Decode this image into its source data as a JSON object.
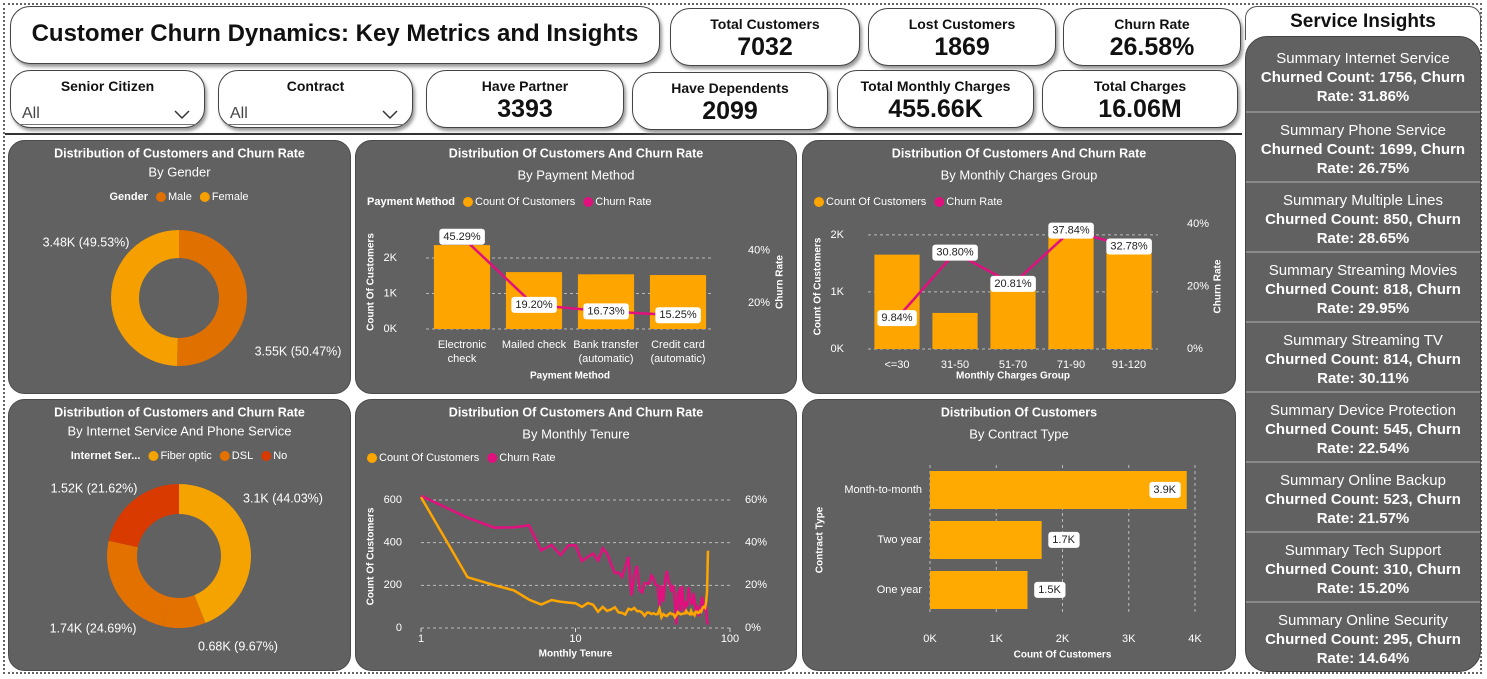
{
  "header": {
    "title": "Customer Churn Dynamics: Key Metrics and Insights"
  },
  "kpis": [
    {
      "label": "Total Customers",
      "value": "7032"
    },
    {
      "label": "Lost Customers",
      "value": "1869"
    },
    {
      "label": "Churn Rate",
      "value": "26.58%"
    },
    {
      "label": "Have Partner",
      "value": "3393"
    },
    {
      "label": "Have Dependents",
      "value": "2099"
    },
    {
      "label": "Total Monthly Charges",
      "value": "455.66K"
    },
    {
      "label": "Total Charges",
      "value": "16.06M"
    }
  ],
  "slicers": [
    {
      "label": "Senior Citizen",
      "value": "All"
    },
    {
      "label": "Contract",
      "value": "All"
    }
  ],
  "insights": {
    "title": "Service Insights",
    "items": [
      {
        "title": "Summary Internet Service",
        "text": "Churned Count: 1756, Churn Rate: 31.86%"
      },
      {
        "title": "Summary Phone Service",
        "text": "Churned Count: 1699, Churn Rate: 26.75%"
      },
      {
        "title": "Summary Multiple Lines",
        "text": "Churned Count: 850, Churn Rate: 28.65%"
      },
      {
        "title": "Summary Streaming Movies",
        "text": "Churned Count: 818, Churn Rate: 29.95%"
      },
      {
        "title": "Summary Streaming TV",
        "text": "Churned Count: 814, Churn Rate: 30.11%"
      },
      {
        "title": "Summary Device Protection",
        "text": "Churned Count: 545, Churn Rate: 22.54%"
      },
      {
        "title": "Summary Online Backup",
        "text": "Churned Count: 523, Churn Rate: 21.57%"
      },
      {
        "title": "Summary Tech Support",
        "text": "Churned Count: 310, Churn Rate: 15.20%"
      },
      {
        "title": "Summary Online Security",
        "text": "Churned Count: 295, Churn Rate: 14.64%"
      }
    ]
  },
  "chart_data": [
    {
      "type": "donut",
      "title": "Distribution of Customers and Churn Rate",
      "subtitle": "By Gender",
      "legend_title": "Gender",
      "categories": [
        "Male",
        "Female"
      ],
      "values": [
        3549,
        3483
      ],
      "value_labels": [
        "3.55K (50.47%)",
        "3.48K (49.53%)"
      ],
      "colors": [
        "#E07000",
        "#F5A000"
      ]
    },
    {
      "type": "combo",
      "title": "Distribution Of Customers And Churn Rate",
      "subtitle": "By Payment Method",
      "legend_title": "Payment Method",
      "categories": [
        "Electronic check",
        "Mailed check",
        "Bank transfer (automatic)",
        "Credit card (automatic)"
      ],
      "series": [
        {
          "name": "Count Of Customers",
          "type": "bar",
          "color": "#FFA500",
          "values": [
            2365,
            1604,
            1542,
            1521
          ]
        },
        {
          "name": "Churn Rate",
          "type": "line",
          "axis": "y2",
          "color": "#E0117F",
          "values": [
            45.29,
            19.2,
            16.73,
            15.25
          ],
          "value_labels": [
            "45.29%",
            "19.20%",
            "16.73%",
            "15.25%"
          ]
        }
      ],
      "xlabel": "Payment Method",
      "ylabel": "Count Of Customers",
      "y2label": "Churn Rate",
      "ylim": [
        0,
        2650
      ],
      "yticks": [
        {
          "value": 0,
          "label": "0K"
        },
        {
          "value": 1000,
          "label": "1K"
        },
        {
          "value": 2000,
          "label": "2K"
        }
      ],
      "y2lim": [
        10,
        46
      ],
      "y2ticks": [
        {
          "value": 20,
          "label": "20%"
        },
        {
          "value": 40,
          "label": "40%"
        }
      ],
      "grid": true
    },
    {
      "type": "combo",
      "title": "Distribution Of Customers And Churn Rate",
      "subtitle": "By Monthly Charges Group",
      "categories": [
        "<=30",
        "31-50",
        "51-70",
        "71-90",
        "91-120"
      ],
      "series": [
        {
          "name": "Count Of Customers",
          "type": "bar",
          "color": "#FFA500",
          "values": [
            1653,
            632,
            1144,
            2100,
            1720
          ]
        },
        {
          "name": "Churn Rate",
          "type": "line",
          "axis": "y2",
          "color": "#E0117F",
          "values": [
            9.84,
            30.8,
            20.81,
            37.84,
            32.78
          ],
          "value_labels": [
            "9.84%",
            "30.80%",
            "20.81%",
            "37.84%",
            "32.78%"
          ]
        }
      ],
      "xlabel": "Monthly Charges Group",
      "ylabel": "Count Of Customers",
      "y2label": "Churn Rate",
      "ylim": [
        0,
        2190
      ],
      "yticks": [
        {
          "value": 0,
          "label": "0K"
        },
        {
          "value": 1000,
          "label": "1K"
        },
        {
          "value": 2000,
          "label": "2K"
        }
      ],
      "y2lim": [
        0,
        40
      ],
      "y2ticks": [
        {
          "value": 0,
          "label": "0%"
        },
        {
          "value": 20,
          "label": "20%"
        },
        {
          "value": 40,
          "label": "40%"
        }
      ],
      "grid": true
    },
    {
      "type": "donut",
      "title": "Distribution of Customers and Churn Rate",
      "subtitle": "By Internet Service And Phone Service",
      "legend_title": "Internet Ser...",
      "categories": [
        "Fiber optic",
        "DSL",
        "DSL",
        "No"
      ],
      "values": [
        3096,
        680,
        1736,
        1520
      ],
      "value_labels": [
        "3.1K (44.03%)",
        "0.68K (9.67%)",
        "1.74K (24.69%)",
        "1.52K (21.62%)"
      ],
      "colors": [
        "#F5A300",
        "#E37100",
        "#E37100",
        "#D93A00"
      ]
    },
    {
      "type": "line",
      "title": "Distribution Of Customers And Churn Rate",
      "subtitle": "By Monthly Tenure",
      "x": [
        1,
        2,
        3,
        4,
        5,
        6,
        7,
        8,
        9,
        10,
        11,
        12,
        13,
        14,
        15,
        16,
        17,
        18,
        19,
        20,
        21,
        22,
        23,
        24,
        25,
        26,
        27,
        28,
        29,
        30,
        31,
        32,
        33,
        34,
        35,
        36,
        37,
        38,
        39,
        40,
        41,
        42,
        43,
        44,
        45,
        46,
        47,
        48,
        49,
        50,
        51,
        52,
        53,
        54,
        55,
        56,
        57,
        58,
        59,
        60,
        61,
        62,
        63,
        64,
        65,
        66,
        67,
        68,
        69,
        70,
        71,
        72
      ],
      "series": [
        {
          "name": "Count Of Customers",
          "color": "#FFA500",
          "values": [
            613,
            238,
            200,
            176,
            133,
            110,
            131,
            123,
            119,
            116,
            99,
            117,
            109,
            76,
            99,
            80,
            87,
            97,
            73,
            71,
            63,
            90,
            85,
            94,
            79,
            79,
            72,
            57,
            72,
            72,
            65,
            69,
            64,
            65,
            88,
            50,
            65,
            59,
            56,
            64,
            70,
            65,
            65,
            51,
            61,
            74,
            68,
            64,
            66,
            68,
            68,
            80,
            70,
            68,
            64,
            80,
            65,
            67,
            60,
            76,
            76,
            70,
            72,
            80,
            76,
            89,
            98,
            100,
            95,
            119,
            170,
            362
          ]
        },
        {
          "name": "Churn Rate",
          "axis": "y2",
          "color": "#E0117F",
          "values": [
            61.99,
            51.68,
            47.0,
            47.16,
            48.12,
            36.36,
            38.93,
            34.15,
            38.66,
            38.79,
            31.31,
            33.33,
            34.86,
            31.58,
            37.37,
            35.0,
            29.89,
            25.77,
            26.03,
            23.94,
            28.57,
            33.33,
            15.29,
            24.47,
            29.11,
            17.72,
            16.67,
            21.05,
            20.83,
            20.83,
            24.62,
            23.19,
            20.31,
            20.0,
            10.23,
            20.0,
            12.31,
            22.03,
            26.79,
            21.88,
            20.0,
            16.92,
            20.0,
            11.76,
            1.64,
            16.22,
            17.65,
            7.81,
            19.7,
            11.76,
            7.35,
            12.5,
            10.0,
            19.12,
            14.06,
            12.5,
            10.77,
            16.42,
            13.33,
            7.89,
            10.53,
            7.14,
            5.56,
            10.0,
            11.84,
            14.61,
            12.24,
            9.0,
            8.42,
            9.24,
            3.53,
            1.66
          ]
        }
      ],
      "xlabel": "Monthly Tenure",
      "ylabel": "Count Of Customers",
      "log_x": true,
      "xlim": [
        1,
        100
      ],
      "xticks": [
        1,
        10,
        100
      ],
      "ylim": [
        0,
        670
      ],
      "yticks": [
        0,
        200,
        400,
        600
      ],
      "y2lim": [
        0,
        67
      ],
      "y2ticks": [
        {
          "value": 0,
          "label": "0%"
        },
        {
          "value": 20,
          "label": "20%"
        },
        {
          "value": 40,
          "label": "40%"
        },
        {
          "value": 60,
          "label": "60%"
        }
      ],
      "grid": true
    },
    {
      "type": "bar",
      "horizontal": true,
      "title": "Distribution Of Customers",
      "subtitle": "By Contract Type",
      "categories": [
        "Month-to-month",
        "Two year",
        "One year"
      ],
      "values": [
        3875,
        1685,
        1472
      ],
      "value_labels": [
        "3.9K",
        "1.7K",
        "1.5K"
      ],
      "color": "#FFAA00",
      "xlabel": "Count Of Customers",
      "ylabel": "Contract Type",
      "xlim": [
        0,
        4000
      ],
      "xticks": [
        {
          "value": 0,
          "label": "0K"
        },
        {
          "value": 1000,
          "label": "1K"
        },
        {
          "value": 2000,
          "label": "2K"
        },
        {
          "value": 3000,
          "label": "3K"
        },
        {
          "value": 4000,
          "label": "4K"
        }
      ],
      "grid": true
    }
  ]
}
